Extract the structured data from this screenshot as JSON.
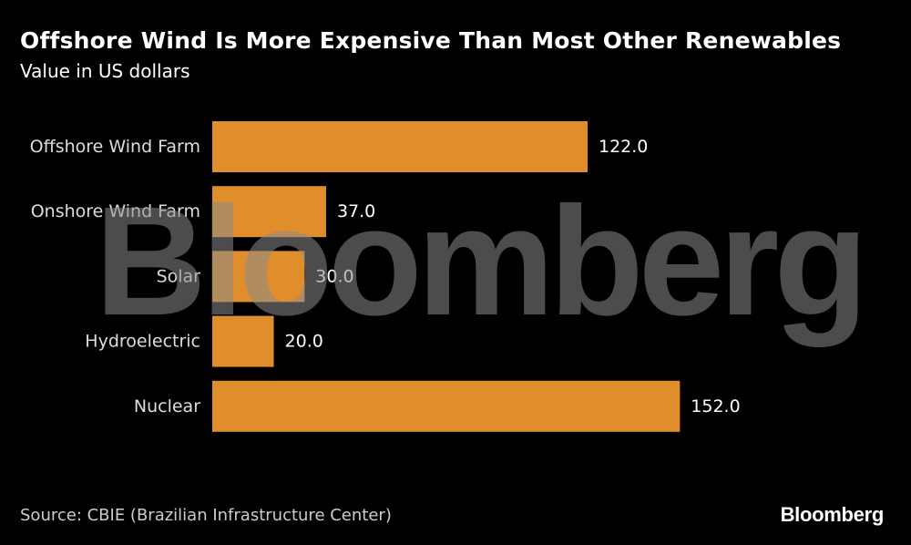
{
  "chart_data": {
    "type": "bar",
    "orientation": "horizontal",
    "title": "Offshore Wind Is More Expensive Than Most Other Renewables",
    "subtitle": "Value in US dollars",
    "categories": [
      "Offshore Wind Farm",
      "Onshore Wind Farm",
      "Solar",
      "Hydroelectric",
      "Nuclear"
    ],
    "values": [
      122.0,
      37.0,
      30.0,
      20.0,
      152.0
    ],
    "value_labels": [
      "122.0",
      "37.0",
      "30.0",
      "20.0",
      "152.0"
    ],
    "xlim": [
      0,
      160
    ],
    "grid": false,
    "legend": "none",
    "bar_color": "#e08e2b",
    "source": "Source: CBIE (Brazilian Infrastructure Center)",
    "watermark": "Bloomberg",
    "brand": "Bloomberg"
  }
}
